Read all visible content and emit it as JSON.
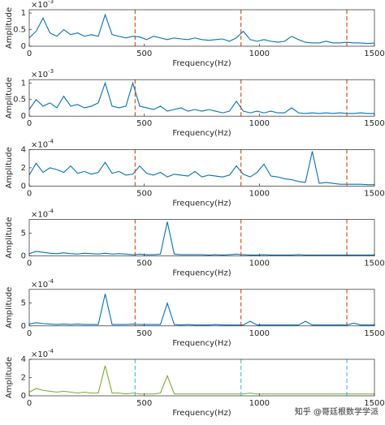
{
  "chart_data": [
    {
      "type": "line",
      "xlabel": "Frequency(Hz)",
      "ylabel": "Amplitude",
      "y_multiplier": "×10",
      "y_exponent": "-3",
      "xlim": [
        0,
        1500
      ],
      "xticks": [
        0,
        500,
        1000,
        1500
      ],
      "ylim": [
        0,
        1.1
      ],
      "yticks": [
        0,
        0.5,
        1
      ],
      "x": [
        0,
        30,
        60,
        90,
        120,
        150,
        180,
        210,
        240,
        270,
        300,
        330,
        360,
        390,
        420,
        450,
        480,
        510,
        540,
        570,
        600,
        630,
        660,
        690,
        720,
        750,
        780,
        810,
        840,
        870,
        900,
        930,
        960,
        990,
        1020,
        1050,
        1080,
        1110,
        1140,
        1170,
        1200,
        1230,
        1260,
        1290,
        1320,
        1350,
        1380,
        1410,
        1440,
        1470,
        1500
      ],
      "series": [
        {
          "color": "#0072BD",
          "values": [
            0.25,
            0.45,
            0.85,
            0.4,
            0.3,
            0.5,
            0.35,
            0.4,
            0.3,
            0.35,
            0.3,
            0.95,
            0.35,
            0.3,
            0.25,
            0.3,
            0.28,
            0.2,
            0.3,
            0.25,
            0.2,
            0.25,
            0.22,
            0.2,
            0.25,
            0.2,
            0.18,
            0.2,
            0.22,
            0.15,
            0.25,
            0.45,
            0.2,
            0.15,
            0.2,
            0.15,
            0.12,
            0.15,
            0.3,
            0.2,
            0.12,
            0.1,
            0.1,
            0.15,
            0.1,
            0.1,
            0.12,
            0.1,
            0.1,
            0.08,
            0.1
          ]
        }
      ],
      "markers": {
        "x": [
          460,
          920,
          1380
        ],
        "color": "#D95319"
      }
    },
    {
      "type": "line",
      "xlabel": "Frequency(Hz)",
      "ylabel": "Amplitude",
      "y_multiplier": "×10",
      "y_exponent": "-3",
      "xlim": [
        0,
        1500
      ],
      "xticks": [
        0,
        500,
        1000,
        1500
      ],
      "ylim": [
        0,
        1.1
      ],
      "yticks": [
        0,
        0.5,
        1
      ],
      "x": [
        0,
        30,
        60,
        90,
        120,
        150,
        180,
        210,
        240,
        270,
        300,
        330,
        360,
        390,
        420,
        450,
        480,
        510,
        540,
        570,
        600,
        630,
        660,
        690,
        720,
        750,
        780,
        810,
        840,
        870,
        900,
        930,
        960,
        990,
        1020,
        1050,
        1080,
        1110,
        1140,
        1170,
        1200,
        1230,
        1260,
        1290,
        1320,
        1350,
        1380,
        1410,
        1440,
        1470,
        1500
      ],
      "series": [
        {
          "color": "#0072BD",
          "values": [
            0.2,
            0.5,
            0.3,
            0.4,
            0.25,
            0.6,
            0.3,
            0.35,
            0.25,
            0.3,
            0.4,
            1.0,
            0.3,
            0.25,
            0.3,
            1.0,
            0.3,
            0.25,
            0.2,
            0.3,
            0.15,
            0.2,
            0.25,
            0.15,
            0.2,
            0.15,
            0.2,
            0.15,
            0.1,
            0.15,
            0.45,
            0.15,
            0.1,
            0.15,
            0.1,
            0.15,
            0.1,
            0.1,
            0.25,
            0.1,
            0.08,
            0.1,
            0.08,
            0.1,
            0.08,
            0.1,
            0.08,
            0.08,
            0.1,
            0.08,
            0.08
          ]
        }
      ],
      "markers": {
        "x": [
          460,
          920,
          1380
        ],
        "color": "#D95319"
      }
    },
    {
      "type": "line",
      "xlabel": "Frequency(Hz)",
      "ylabel": "Amplitude",
      "y_multiplier": "×10",
      "y_exponent": "-4",
      "xlim": [
        0,
        1500
      ],
      "xticks": [
        0,
        500,
        1000,
        1500
      ],
      "ylim": [
        0,
        4
      ],
      "yticks": [
        0,
        2,
        4
      ],
      "x": [
        0,
        30,
        60,
        90,
        120,
        150,
        180,
        210,
        240,
        270,
        300,
        330,
        360,
        390,
        420,
        450,
        480,
        510,
        540,
        570,
        600,
        630,
        660,
        690,
        720,
        750,
        780,
        810,
        840,
        870,
        900,
        930,
        960,
        990,
        1020,
        1050,
        1080,
        1110,
        1140,
        1170,
        1200,
        1230,
        1260,
        1290,
        1320,
        1350,
        1380,
        1410,
        1440,
        1470,
        1500
      ],
      "series": [
        {
          "color": "#0072BD",
          "values": [
            1.2,
            2.5,
            1.5,
            2,
            1.8,
            1.5,
            2.2,
            1.4,
            1.6,
            1.3,
            1.5,
            2.6,
            1.4,
            1.6,
            1.2,
            1.3,
            2.2,
            1.4,
            1.2,
            1.5,
            1.0,
            1.3,
            1.2,
            1.1,
            1.6,
            1.0,
            1.2,
            1.1,
            1.0,
            1.2,
            2.2,
            1.3,
            1.0,
            1.5,
            2.4,
            1.1,
            1.0,
            0.8,
            0.7,
            0.5,
            0.4,
            3.8,
            0.3,
            0.4,
            0.3,
            0.2,
            0.2,
            0.2,
            0.2,
            0.15,
            0.15
          ]
        }
      ],
      "markers": {
        "x": [
          460,
          920,
          1380
        ],
        "color": "#D95319"
      }
    },
    {
      "type": "line",
      "xlabel": "Frequency(Hz)",
      "ylabel": "Amplitude",
      "y_multiplier": "×10",
      "y_exponent": "-4",
      "xlim": [
        0,
        1500
      ],
      "xticks": [
        0,
        500,
        1000,
        1500
      ],
      "ylim": [
        0,
        8
      ],
      "yticks": [
        0,
        5
      ],
      "x": [
        0,
        30,
        60,
        90,
        120,
        150,
        180,
        210,
        240,
        270,
        300,
        330,
        360,
        390,
        420,
        450,
        480,
        510,
        540,
        570,
        600,
        630,
        660,
        690,
        720,
        750,
        780,
        810,
        840,
        870,
        900,
        930,
        960,
        990,
        1020,
        1050,
        1080,
        1110,
        1140,
        1170,
        1200,
        1230,
        1260,
        1290,
        1320,
        1350,
        1380,
        1410,
        1440,
        1470,
        1500
      ],
      "series": [
        {
          "color": "#0072BD",
          "values": [
            0.5,
            1,
            0.8,
            0.6,
            0.5,
            0.7,
            0.5,
            0.4,
            0.6,
            0.5,
            0.4,
            0.6,
            0.4,
            0.5,
            0.4,
            0.3,
            0.4,
            0.3,
            0.3,
            0.4,
            7.5,
            0.4,
            0.3,
            0.3,
            0.3,
            0.3,
            0.2,
            0.3,
            0.2,
            0.3,
            0.4,
            0.3,
            0.2,
            0.2,
            0.3,
            0.2,
            0.2,
            0.2,
            0.2,
            0.3,
            0.2,
            0.2,
            0.2,
            0.2,
            0.2,
            0.2,
            0.2,
            0.2,
            0.2,
            0.2,
            0.2
          ]
        }
      ],
      "markers": {
        "x": [
          460,
          920,
          1380
        ],
        "color": "#D95319"
      }
    },
    {
      "type": "line",
      "xlabel": "Frequency(Hz)",
      "ylabel": "Amplitude",
      "y_multiplier": "×10",
      "y_exponent": "-4",
      "xlim": [
        0,
        1500
      ],
      "xticks": [
        0,
        500,
        1000,
        1500
      ],
      "ylim": [
        0,
        8
      ],
      "yticks": [
        0,
        5
      ],
      "x": [
        0,
        30,
        60,
        90,
        120,
        150,
        180,
        210,
        240,
        270,
        300,
        330,
        360,
        390,
        420,
        450,
        480,
        510,
        540,
        570,
        600,
        630,
        660,
        690,
        720,
        750,
        780,
        810,
        840,
        870,
        900,
        930,
        960,
        990,
        1020,
        1050,
        1080,
        1110,
        1140,
        1170,
        1200,
        1230,
        1260,
        1290,
        1320,
        1350,
        1380,
        1410,
        1440,
        1470,
        1500
      ],
      "series": [
        {
          "color": "#0072BD",
          "values": [
            0.4,
            0.7,
            0.5,
            0.4,
            0.3,
            0.4,
            0.3,
            0.4,
            0.3,
            0.3,
            0.3,
            7,
            0.3,
            0.3,
            0.3,
            0.4,
            0.3,
            0.3,
            0.3,
            0.3,
            5,
            0.3,
            0.2,
            0.3,
            0.2,
            0.2,
            0.2,
            0.3,
            0.2,
            0.2,
            0.2,
            0.2,
            1,
            0.2,
            0.2,
            0.2,
            0.2,
            0.2,
            0.2,
            0.2,
            1,
            0.2,
            0.2,
            0.2,
            0.2,
            0.2,
            0.2,
            0.6,
            0.2,
            0.2,
            0.2
          ]
        }
      ],
      "markers": {
        "x": [
          460,
          920,
          1380
        ],
        "color": "#D95319"
      }
    },
    {
      "type": "line",
      "xlabel": "Frequency(Hz)",
      "ylabel": "Amplitude",
      "y_multiplier": "×10",
      "y_exponent": "-4",
      "xlim": [
        0,
        1500
      ],
      "xticks": [
        0,
        500,
        1000,
        1500
      ],
      "ylim": [
        0,
        4
      ],
      "yticks": [
        0,
        2,
        4
      ],
      "x": [
        0,
        30,
        60,
        90,
        120,
        150,
        180,
        210,
        240,
        270,
        300,
        330,
        360,
        390,
        420,
        450,
        480,
        510,
        540,
        570,
        600,
        630,
        660,
        690,
        720,
        750,
        780,
        810,
        840,
        870,
        900,
        930,
        960,
        990,
        1020,
        1050,
        1080,
        1110,
        1140,
        1170,
        1200,
        1230,
        1260,
        1290,
        1320,
        1350,
        1380,
        1410,
        1440,
        1470,
        1500
      ],
      "series": [
        {
          "color": "#77AC30",
          "values": [
            0.4,
            0.8,
            0.6,
            0.5,
            0.4,
            0.5,
            0.4,
            0.3,
            0.4,
            0.3,
            0.3,
            3.3,
            0.3,
            0.3,
            0.2,
            0.3,
            0.2,
            0.2,
            0.2,
            0.3,
            2.2,
            0.2,
            0.2,
            0.2,
            0.2,
            0.2,
            0.2,
            0.2,
            0.2,
            0.2,
            0.2,
            0.2,
            0.3,
            0.2,
            0.2,
            0.2,
            0.2,
            0.2,
            0.2,
            0.2,
            0.2,
            0.2,
            0.2,
            0.2,
            0.2,
            0.2,
            0.2,
            0.2,
            0.2,
            0.2,
            0.2
          ]
        }
      ],
      "markers": {
        "x": [
          460,
          920,
          1380
        ],
        "color": "#4DBEEE"
      }
    }
  ],
  "watermark": "知乎 @哥廷根数学学派"
}
